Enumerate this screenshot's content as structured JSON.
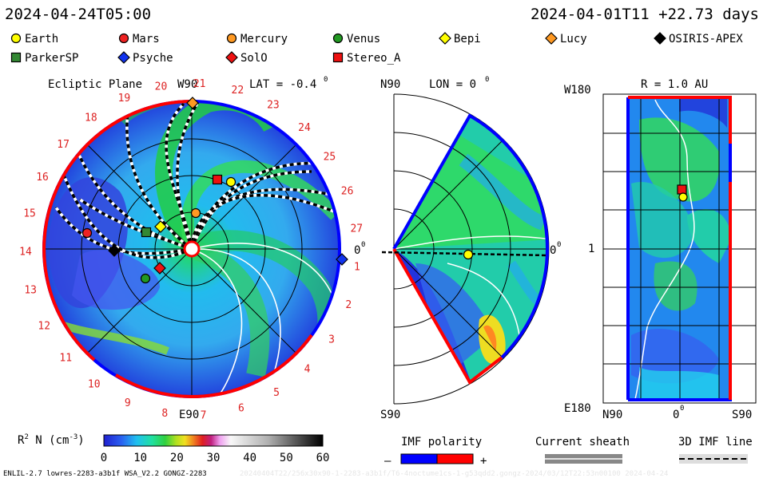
{
  "header": {
    "model_time": "2024-04-24T05:00",
    "run_info": "2024-04-01T11 +22.73 days"
  },
  "legend": [
    {
      "name": "Earth",
      "marker": "circle",
      "color": "#ffff00"
    },
    {
      "name": "Mars",
      "marker": "circle",
      "color": "#ee2222"
    },
    {
      "name": "Mercury",
      "marker": "circle",
      "color": "#ff9922"
    },
    {
      "name": "Venus",
      "marker": "circle",
      "color": "#229922"
    },
    {
      "name": "Bepi",
      "marker": "diamond",
      "color": "#ffff00"
    },
    {
      "name": "Lucy",
      "marker": "diamond",
      "color": "#ff9922"
    },
    {
      "name": "OSIRIS-APEX",
      "marker": "diamond",
      "color": "#000000"
    },
    {
      "name": "ParkerSP",
      "marker": "square",
      "color": "#338833"
    },
    {
      "name": "Psyche",
      "marker": "diamond",
      "color": "#1133ee"
    },
    {
      "name": "SolO",
      "marker": "diamond",
      "color": "#ee1111"
    },
    {
      "name": "Stereo_A",
      "marker": "square",
      "color": "#ee1111"
    }
  ],
  "panels": {
    "ecliptic": {
      "title": "Ecliptic Plane",
      "lat_label": "LAT = -0.4",
      "lat_sup": "0",
      "top_label": "W90",
      "bottom_label": "E90",
      "right_label": "0",
      "right_sup": "0"
    },
    "meridional": {
      "top_left": "N90",
      "lon_label": "LON = 0",
      "lon_sup": "0",
      "bottom_left": "S90",
      "right_label": "0",
      "right_sup": "0"
    },
    "sphere": {
      "radius_label": "R = 1.0 AU",
      "top_left": "W180",
      "mid_left": "1",
      "bottom_left": "E180",
      "x_ticks": [
        "N90",
        "0",
        "S90"
      ],
      "x_mid_sup": "0"
    }
  },
  "chart_data": {
    "type": "heatmap",
    "quantity": "R² N (cm⁻³)",
    "colorbar": {
      "label_main": "R",
      "label_sup": "2",
      "label_rest": " N (cm",
      "label_exp": "-3",
      "label_end": ")",
      "ticks": [
        "0",
        "10",
        "20",
        "30",
        "40",
        "50",
        "60"
      ],
      "range": [
        0,
        60
      ]
    },
    "carrington_ticks": [
      "1",
      "2",
      "3",
      "4",
      "5",
      "6",
      "7",
      "8",
      "9",
      "10",
      "11",
      "12",
      "13",
      "14",
      "15",
      "16",
      "17",
      "18",
      "19",
      "20",
      "21",
      "22",
      "23",
      "24",
      "25",
      "26",
      "27"
    ],
    "imf_polarity": {
      "title": "IMF polarity",
      "minus": "–",
      "plus": "+",
      "minus_color": "#0000ff",
      "plus_color": "#ff0000"
    },
    "current_sheath": {
      "title": "Current sheath"
    },
    "imf_line": {
      "title": "3D IMF line"
    }
  },
  "footer": {
    "model_info": "ENLIL-2.7 lowres-2283-a3b1f WSA_V2.2 GONGZ-2283",
    "faint_info": "20240404T22/256x30x90-1-2283-a3b1f/T6-4noctume1cs-1-g53qdd2.gongz-2024/03/12T22:53n00100   2024-04-24"
  }
}
